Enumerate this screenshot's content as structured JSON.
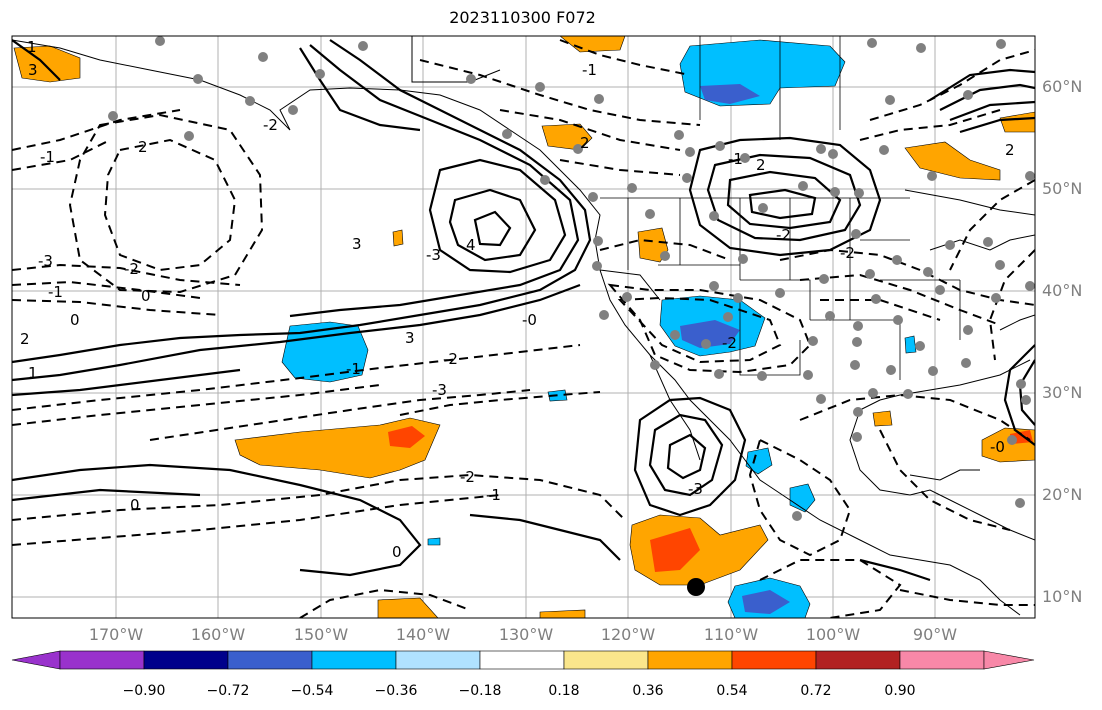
{
  "title": "2023110300 F072",
  "lat_labels": [
    "60°N",
    "50°N",
    "40°N",
    "30°N",
    "20°N",
    "10°N"
  ],
  "lon_labels": [
    "170°W",
    "160°W",
    "150°W",
    "140°W",
    "130°W",
    "120°W",
    "110°W",
    "100°W",
    "90°W"
  ],
  "colorbar": {
    "ticks": [
      "−0.90",
      "−0.72",
      "−0.54",
      "−0.36",
      "−0.18",
      "0.18",
      "0.36",
      "0.54",
      "0.72",
      "0.90"
    ],
    "colors": [
      "#9932cc",
      "#00008b",
      "#3a5fcd",
      "#00bfff",
      "#b0e2ff",
      "#ffffff",
      "#fae68c",
      "#ffa500",
      "#ff4500",
      "#b22222",
      "#f888a8"
    ]
  },
  "contour_labels": [
    "1",
    "3",
    "-1",
    "2",
    "-2",
    "-3",
    "0",
    "3",
    "-3",
    "-2",
    "-1",
    "0",
    "1",
    "2",
    "-0",
    "4",
    "3",
    "-2",
    "-1",
    "2",
    "-3",
    "-1",
    "-2",
    "-2",
    "-3",
    "0",
    "-2",
    "-1",
    "-2",
    "2",
    "-1",
    "2",
    "-0",
    "0"
  ],
  "colors": {
    "positive_fill": "#ffa500",
    "strong_positive_fill": "#ff4500",
    "negative_fill": "#00bfff",
    "strong_negative_fill": "#3a5fcd",
    "station_dot": "#808080",
    "grid": "#b0b0b0"
  }
}
